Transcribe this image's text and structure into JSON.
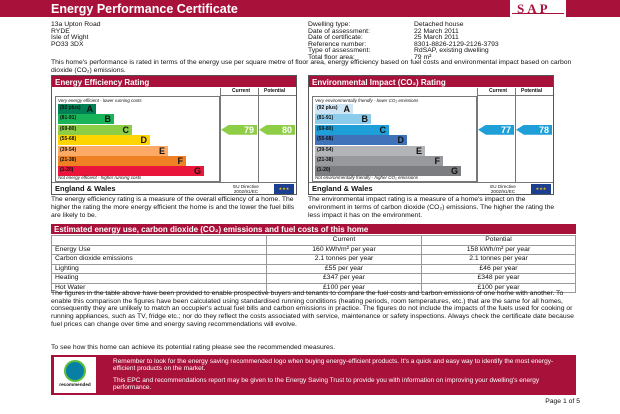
{
  "header": {
    "title": "Energy Performance Certificate",
    "logo_text": "SAP"
  },
  "address": [
    "13a Upton Road",
    "RYDE",
    "Isle of Wight",
    "PO33 3DX"
  ],
  "properties": [
    {
      "key": "Dwelling type:",
      "value": "Detached house"
    },
    {
      "key": "Date of assessment:",
      "value": "22 March 2011"
    },
    {
      "key": "Date of certificate:",
      "value": "25 March 2011"
    },
    {
      "key": "Reference number:",
      "value": "8301-8826-2129-2126-3793"
    },
    {
      "key": "Type of assessment:",
      "value": "RdSAP, existing dwelling"
    },
    {
      "key": "Total floor area:",
      "value": "79 m²"
    }
  ],
  "intro": "This home's performance is rated in terms of the energy use per square metre of floor area, energy efficiency based on fuel costs and environmental impact based on carbon dioxide (CO₂) emissions.",
  "efficiency": {
    "title": "Energy Efficiency Rating",
    "col_current": "Current",
    "col_potential": "Potential",
    "top_caption": "Very energy efficient - lower running costs",
    "bottom_caption": "Not energy efficient - higher running costs",
    "bands": [
      {
        "range": "(92 plus)",
        "letter": "A",
        "color": "#008054"
      },
      {
        "range": "(81-91)",
        "letter": "B",
        "color": "#19b459"
      },
      {
        "range": "(69-80)",
        "letter": "C",
        "color": "#8dce46"
      },
      {
        "range": "(55-68)",
        "letter": "D",
        "color": "#ffd500"
      },
      {
        "range": "(39-54)",
        "letter": "E",
        "color": "#fcaa65"
      },
      {
        "range": "(21-38)",
        "letter": "F",
        "color": "#ef8023"
      },
      {
        "range": "(1-20)",
        "letter": "G",
        "color": "#e9153b"
      }
    ],
    "current": 79,
    "current_band": 2,
    "current_color": "#8dce46",
    "potential": 80,
    "potential_band": 2,
    "potential_color": "#8dce46",
    "region": "England & Wales",
    "directive": "EU Directive 2002/91/EC"
  },
  "environment": {
    "title": "Environmental Impact (CO₂) Rating",
    "col_current": "Current",
    "col_potential": "Potential",
    "top_caption": "Very environmentally friendly - lower CO₂ emissions",
    "bottom_caption": "Not environmentally friendly - higher CO₂ emissions",
    "bands": [
      {
        "range": "(92 plus)",
        "letter": "A",
        "color": "#cfe5f3"
      },
      {
        "range": "(81-91)",
        "letter": "B",
        "color": "#8ccbea"
      },
      {
        "range": "(69-80)",
        "letter": "C",
        "color": "#1f9fd8"
      },
      {
        "range": "(55-68)",
        "letter": "D",
        "color": "#3f72b8"
      },
      {
        "range": "(39-54)",
        "letter": "E",
        "color": "#b2b4b7"
      },
      {
        "range": "(21-38)",
        "letter": "F",
        "color": "#97999c"
      },
      {
        "range": "(1-20)",
        "letter": "G",
        "color": "#7b7d80"
      }
    ],
    "current": 77,
    "current_band": 2,
    "current_color": "#1f9fd8",
    "potential": 78,
    "potential_band": 2,
    "potential_color": "#1f9fd8",
    "region": "England & Wales",
    "directive": "EU Directive 2002/91/EC"
  },
  "desc_eff": "The energy efficiency rating is a measure of the overall efficiency of a home. The higher the rating the more energy efficient the home is and the lower the fuel bills are likely to be.",
  "desc_env": "The environmental impact rating is a measure of a home's impact on the environment in terms of carbon dioxide (CO₂) emissions. The higher the rating the less impact it has on the environment.",
  "estimates": {
    "title": "Estimated energy use, carbon dioxide (CO₂) emissions and fuel costs of this home",
    "headers": [
      "",
      "Current",
      "Potential"
    ],
    "rows": [
      [
        "Energy Use",
        "160 kWh/m² per year",
        "158 kWh/m² per year"
      ],
      [
        "Carbon dioxide emissions",
        "2.1 tonnes per year",
        "2.1 tonnes per year"
      ],
      [
        "Lighting",
        "£55 per year",
        "£46 per year"
      ],
      [
        "Heating",
        "£347 per year",
        "£348 per year"
      ],
      [
        "Hot Water",
        "£100 per year",
        "£100 per year"
      ]
    ]
  },
  "body_text": "The figures in the table above have been provided to enable prospective buyers and tenants to compare the fuel costs and carbon emissions of one home with another. To enable this comparison the figures have been calculated using standardised running conditions (heating periods, room temperatures, etc.) that are the same for all homes, consequently they are unlikely to match an occupier's actual fuel bills and carbon emissions in practice. The figures do not include the impacts of the fuels used for cooking or running appliances, such as TV, fridge etc.; nor do they reflect the costs associated with service, maintenance or safety inspections. Always check the certificate date because fuel prices can change over time and energy saving recommendations will evolve.",
  "body_text2": "To see how this home can achieve its potential rating please see the recommended measures.",
  "banner": {
    "logo_label": "recommended",
    "line1": "Remember to look for the energy saving recommended logo when buying energy-efficient products. It's a quick and easy way to identify the most energy-efficient products on the market.",
    "line2": "This EPC and recommendations report may be given to the Energy Saving Trust to provide you with information on improving your dwelling's energy performance."
  },
  "page_number": "Page 1 of 5"
}
